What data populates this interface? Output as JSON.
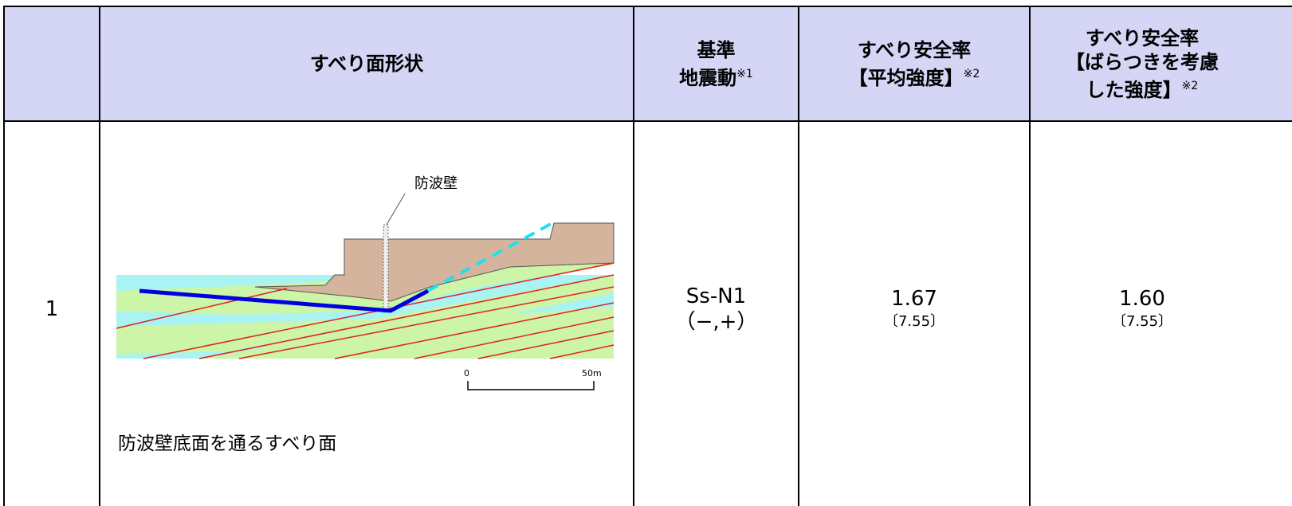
{
  "table": {
    "header": {
      "shape": "すべり面形状",
      "ground_motion": {
        "lines": [
          "基準",
          "地震動"
        ],
        "note": "※1"
      },
      "safety_mean": {
        "lines": [
          "すべり安全率",
          "【平均強度】"
        ],
        "note": "※2"
      },
      "safety_var": {
        "lines": [
          "すべり安全率",
          "【ばらつきを考慮",
          "した強度】"
        ],
        "note": "※2"
      }
    },
    "rows": [
      {
        "no": "1",
        "figure": {
          "wall_label": "防波壁",
          "scale": [
            "0",
            "50m"
          ],
          "caption": "防波壁底面を通るすべり面"
        },
        "ground_motion": [
          "Ss-N1",
          "（−,+）"
        ],
        "safety_mean": {
          "value": "1.67",
          "time": "〔7.55〕"
        },
        "safety_var": {
          "value": "1.60",
          "time": "〔7.55〕"
        }
      }
    ]
  }
}
